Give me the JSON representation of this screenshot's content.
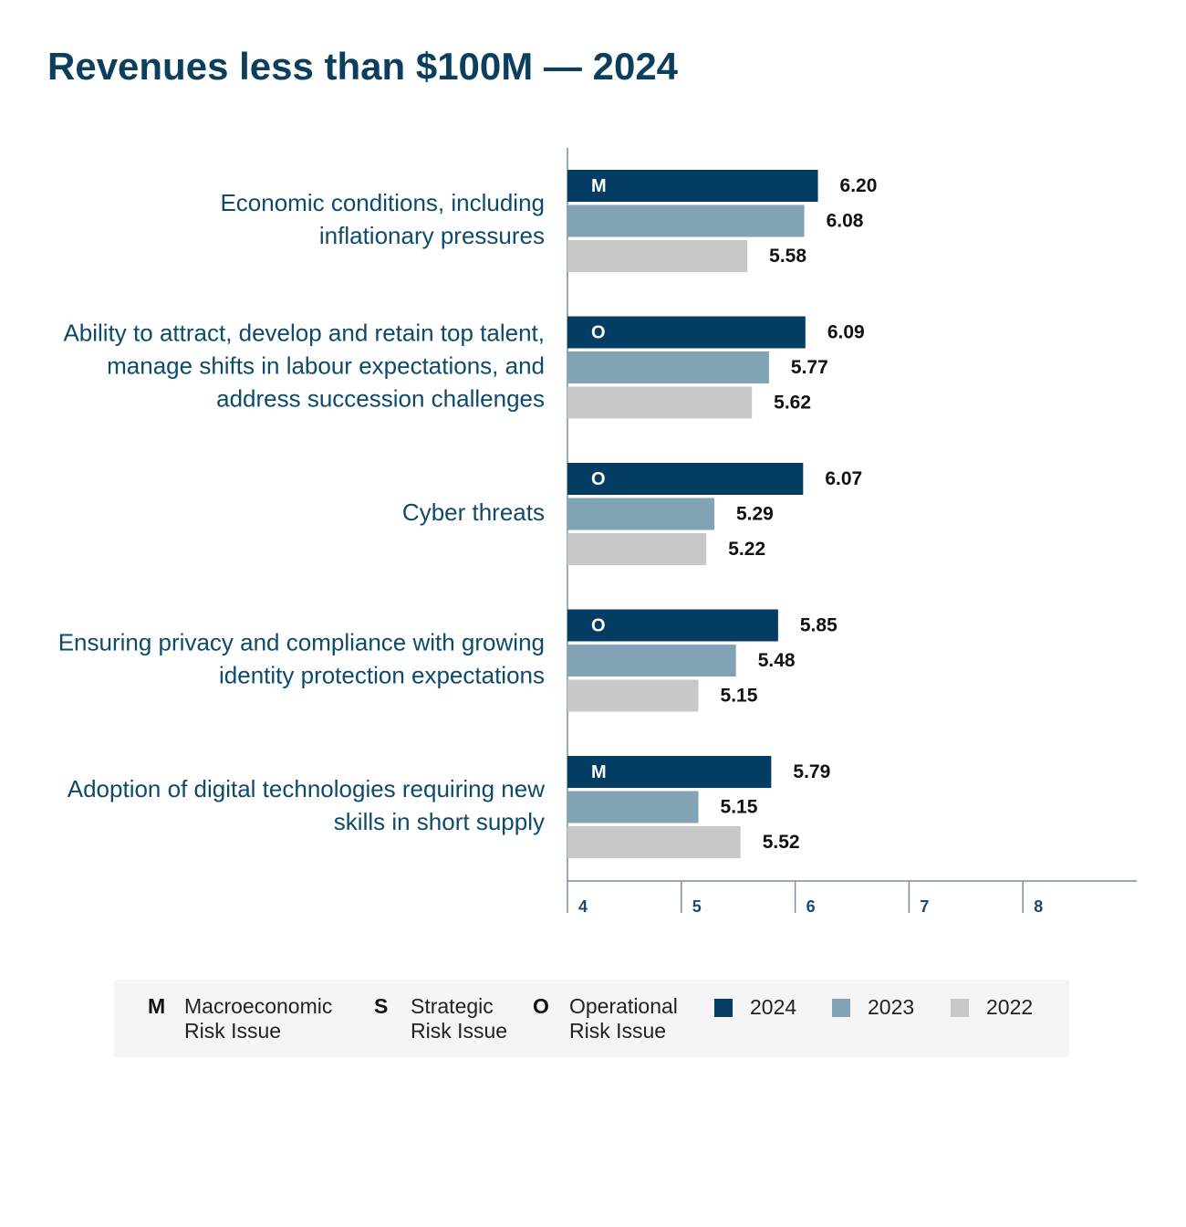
{
  "chart_data": {
    "type": "hbar",
    "title": "Revenues less than $100M — 2024",
    "categories": [
      [
        "Economic conditions, including",
        "inflationary pressures"
      ],
      [
        "Ability to attract, develop and retain top talent,",
        "manage shifts in labour expectations, and",
        "address succession challenges"
      ],
      [
        "Cyber threats"
      ],
      [
        "Ensuring privacy and compliance with growing",
        "identity protection expectations"
      ],
      [
        "Adoption of digital technologies requiring new",
        "skills in short supply"
      ]
    ],
    "risk_types": [
      "M",
      "O",
      "O",
      "O",
      "M"
    ],
    "series": [
      {
        "name": "2024",
        "color": "#033d63",
        "values": [
          6.2,
          6.09,
          6.07,
          5.85,
          5.79
        ],
        "value_labels": [
          "6.20",
          "6.09",
          "6.07",
          "5.85",
          "5.79"
        ]
      },
      {
        "name": "2023",
        "color": "#82a2b5",
        "values": [
          6.08,
          5.77,
          5.29,
          5.48,
          5.15
        ]
      },
      {
        "name": "2022",
        "color": "#c8c8c8",
        "values": [
          5.58,
          5.62,
          5.22,
          5.15,
          5.52
        ]
      }
    ],
    "risk_legend": [
      {
        "code": "M",
        "lines": [
          "Macroeconomic",
          "Risk Issue"
        ]
      },
      {
        "code": "S",
        "lines": [
          "Strategic",
          "Risk Issue"
        ]
      },
      {
        "code": "O",
        "lines": [
          "Operational",
          "Risk Issue"
        ]
      }
    ],
    "xlim": [
      4,
      9
    ],
    "xticks": [
      4,
      5,
      6,
      7,
      8
    ]
  }
}
